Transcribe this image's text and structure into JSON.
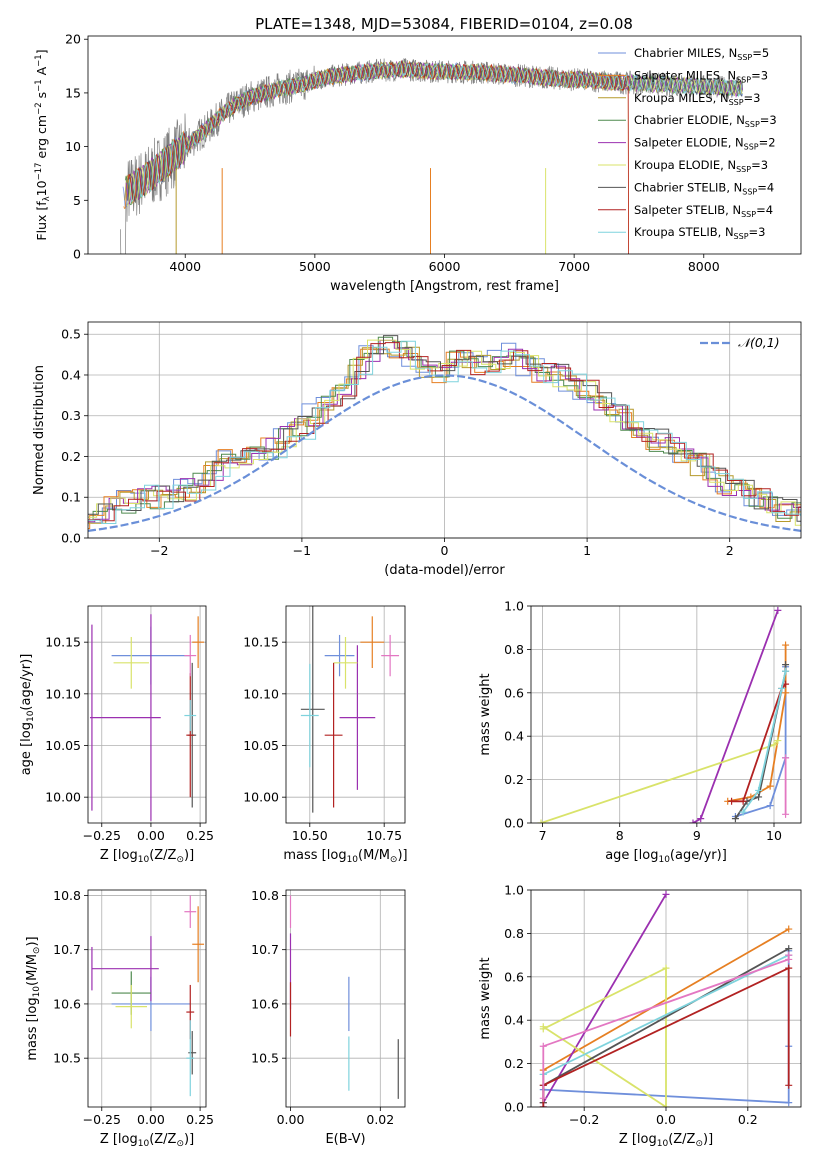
{
  "chart_data": [
    {
      "type": "line",
      "title": "PLATE=1348, MJD=53084, FIBERID=0104, z=0.08",
      "xlabel": "wavelength [Angstrom, rest frame]",
      "ylabel": "Flux [f",
      "ylabel_sub": "λ",
      "ylabel_rest": "10",
      "ylabel_exp1": "−17",
      "ylabel_mid": " erg cm",
      "ylabel_exp2": "−2",
      "ylabel_s": " s",
      "ylabel_exp3": "−1",
      "ylabel_end": " A",
      "ylabel_exp4": "−1",
      "ylabel_close": "]",
      "xlim": [
        3250,
        8750
      ],
      "ylim": [
        0,
        20.3
      ],
      "xticks": [
        "4000",
        "5000",
        "6000",
        "7000",
        "8000"
      ],
      "yticks": [
        "0",
        "5",
        "10",
        "15",
        "20"
      ],
      "continuum": {
        "x": [
          3500,
          3600,
          3700,
          3800,
          3900,
          4000,
          4100,
          4200,
          4300,
          4400,
          4500,
          4700,
          4900,
          5100,
          5300,
          5500,
          5700,
          5900,
          6100,
          6300,
          6500,
          6700,
          6900,
          7100,
          7300,
          7500,
          7700,
          8000,
          8300
        ],
        "y": [
          5.5,
          6.2,
          7.0,
          8.0,
          9.0,
          10.0,
          11.0,
          12.0,
          13.2,
          14.0,
          14.6,
          15.3,
          15.8,
          16.5,
          16.8,
          17.1,
          17.2,
          17.0,
          17.0,
          16.9,
          16.7,
          16.5,
          16.3,
          16.2,
          16.0,
          15.9,
          15.8,
          15.6,
          15.4
        ]
      },
      "series": [
        {
          "name": "Chabrier MILES, ",
          "n_label": "N",
          "n_sub": "SSP",
          "n_value": "=5",
          "color": "#6f8fdb"
        },
        {
          "name": "Salpeter MILES, ",
          "n_label": "N",
          "n_sub": "SSP",
          "n_value": "=3",
          "color": "#e67f22"
        },
        {
          "name": "Kroupa MILES, ",
          "n_label": "N",
          "n_sub": "SSP",
          "n_value": "=3",
          "color": "#b59a2c"
        },
        {
          "name": "Chabrier ELODIE, ",
          "n_label": "N",
          "n_sub": "SSP",
          "n_value": "=3",
          "color": "#4f8a4f"
        },
        {
          "name": "Salpeter ELODIE, ",
          "n_label": "N",
          "n_sub": "SSP",
          "n_value": "=2",
          "color": "#9b30b0"
        },
        {
          "name": "Kroupa ELODIE, ",
          "n_label": "N",
          "n_sub": "SSP",
          "n_value": "=3",
          "color": "#d9e36a"
        },
        {
          "name": "Chabrier STELIB, ",
          "n_label": "N",
          "n_sub": "SSP",
          "n_value": "=4",
          "color": "#555555"
        },
        {
          "name": "Salpeter STELIB, ",
          "n_label": "N",
          "n_sub": "SSP",
          "n_value": "=4",
          "color": "#b22222"
        },
        {
          "name": "Kroupa STELIB, ",
          "n_label": "N",
          "n_sub": "SSP",
          "n_value": "=3",
          "color": "#7fd3dd"
        }
      ],
      "data_color": "#808080"
    },
    {
      "type": "histogram",
      "xlabel": "(data-model)/error",
      "ylabel": "Normed distribution",
      "xlim": [
        -2.5,
        2.5
      ],
      "ylim": [
        0,
        0.53
      ],
      "xticks": [
        "−2",
        "−1",
        "0",
        "1",
        "2"
      ],
      "xtick_values": [
        -2,
        -1,
        0,
        1,
        2
      ],
      "yticks": [
        "0.0",
        "0.1",
        "0.2",
        "0.3",
        "0.4",
        "0.5"
      ],
      "ytick_values": [
        0,
        0.1,
        0.2,
        0.3,
        0.4,
        0.5
      ],
      "legend": "𝒩(0,1)",
      "gaussian_color": "#6a8fd8",
      "bin_width": 0.1,
      "base_bins": [
        0.015,
        0.02,
        0.025,
        0.03,
        0.04,
        0.05,
        0.065,
        0.08,
        0.09,
        0.1,
        0.1,
        0.11,
        0.12,
        0.14,
        0.16,
        0.19,
        0.2,
        0.21,
        0.22,
        0.25,
        0.27,
        0.3,
        0.34,
        0.37,
        0.42,
        0.46,
        0.48,
        0.46,
        0.44,
        0.42,
        0.41,
        0.44,
        0.43,
        0.42,
        0.44,
        0.45,
        0.42,
        0.41,
        0.4,
        0.38,
        0.36,
        0.33,
        0.31,
        0.29,
        0.26,
        0.24,
        0.22,
        0.2,
        0.18,
        0.15,
        0.13,
        0.12,
        0.1,
        0.09,
        0.07,
        0.06,
        0.05,
        0.04,
        0.04,
        0.03,
        0.02,
        0.015
      ]
    },
    {
      "type": "scatter",
      "xlabel": "Z [log",
      "xlabel_sub": "10",
      "xlabel_rest": "(Z/Z",
      "xlabel_sun": "⊙",
      "xlabel_end": ")]",
      "ylabel": "age  [log",
      "ylabel_sub": "10",
      "ylabel_rest": "(age/yr)]",
      "xlim": [
        -0.32,
        0.28
      ],
      "ylim": [
        9.975,
        10.185
      ],
      "xticks": [
        "−0.25",
        "0.00",
        "0.25"
      ],
      "xtick_values": [
        -0.25,
        0,
        0.25
      ],
      "yticks": [
        "10.00",
        "10.05",
        "10.10",
        "10.15"
      ],
      "ytick_values": [
        10.0,
        10.05,
        10.1,
        10.15
      ],
      "points": [
        {
          "x": 0.0,
          "y": 10.137,
          "xerr": 0.2,
          "yerr": 0.028,
          "color": "#6f8fdb"
        },
        {
          "x": 0.24,
          "y": 10.15,
          "xerr": 0.03,
          "yerr": 0.025,
          "color": "#e67f22"
        },
        {
          "x": -0.3,
          "y": 10.077,
          "xerr": 0.0,
          "yerr": 0.09,
          "color": "#9b30b0"
        },
        {
          "x": -0.13,
          "y": 10.077,
          "xerr": 0.18,
          "yerr": 0.0,
          "color": "#9b30b0"
        },
        {
          "x": 0.0,
          "y": 10.077,
          "xerr": 0.0,
          "yerr": 0.1,
          "color": "#9b30b0"
        },
        {
          "x": -0.1,
          "y": 10.13,
          "xerr": 0.09,
          "yerr": 0.025,
          "color": "#d9e36a"
        },
        {
          "x": 0.21,
          "y": 10.06,
          "xerr": 0.02,
          "yerr": 0.07,
          "color": "#555555"
        },
        {
          "x": 0.2,
          "y": 10.06,
          "xerr": 0.02,
          "yerr": 0.06,
          "color": "#b22222"
        },
        {
          "x": 0.2,
          "y": 10.079,
          "xerr": 0.03,
          "yerr": 0.015,
          "color": "#7fd3dd"
        },
        {
          "x": 0.2,
          "y": 10.137,
          "xerr": 0.03,
          "yerr": 0.02,
          "color": "#e377c2"
        }
      ]
    },
    {
      "type": "scatter",
      "xlabel": "mass [log",
      "xlabel_sub": "10",
      "xlabel_rest": "(M/M",
      "xlabel_sun": "⊙",
      "xlabel_end": ")]",
      "xlim": [
        10.42,
        10.82
      ],
      "ylim": [
        9.975,
        10.185
      ],
      "xticks": [
        "10.50",
        "10.75"
      ],
      "xtick_values": [
        10.5,
        10.75
      ],
      "yticks": [
        "10.00",
        "10.05",
        "10.10",
        "10.15"
      ],
      "ytick_values": [
        10.0,
        10.05,
        10.1,
        10.15
      ],
      "points": [
        {
          "x": 10.6,
          "y": 10.137,
          "xerr": 0.05,
          "yerr": 0.02,
          "color": "#6f8fdb"
        },
        {
          "x": 10.71,
          "y": 10.15,
          "xerr": 0.04,
          "yerr": 0.025,
          "color": "#e67f22"
        },
        {
          "x": 10.66,
          "y": 10.077,
          "xerr": 0.06,
          "yerr": 0.07,
          "color": "#9b30b0"
        },
        {
          "x": 10.62,
          "y": 10.13,
          "xerr": 0.04,
          "yerr": 0.025,
          "color": "#d9e36a"
        },
        {
          "x": 10.51,
          "y": 10.085,
          "xerr": 0.04,
          "yerr": 0.1,
          "color": "#555555"
        },
        {
          "x": 10.58,
          "y": 10.06,
          "xerr": 0.03,
          "yerr": 0.07,
          "color": "#b22222"
        },
        {
          "x": 10.5,
          "y": 10.079,
          "xerr": 0.03,
          "yerr": 0.05,
          "color": "#7fd3dd"
        },
        {
          "x": 10.77,
          "y": 10.137,
          "xerr": 0.03,
          "yerr": 0.02,
          "color": "#e377c2"
        }
      ]
    },
    {
      "type": "line",
      "xlabel": "age  [log",
      "xlabel_sub": "10",
      "xlabel_rest": "(age/yr)]",
      "ylabel": "mass weight",
      "xlim": [
        6.85,
        10.35
      ],
      "ylim": [
        0,
        1.0
      ],
      "xticks": [
        "7",
        "8",
        "9",
        "10"
      ],
      "xtick_values": [
        7,
        8,
        9,
        10
      ],
      "yticks": [
        "0.0",
        "0.2",
        "0.4",
        "0.6",
        "0.8",
        "1.0"
      ],
      "ytick_values": [
        0,
        0.2,
        0.4,
        0.6,
        0.8,
        1.0
      ],
      "series": [
        {
          "color": "#6f8fdb",
          "x": [
            9.5,
            9.95,
            10.15,
            10.15
          ],
          "y": [
            0.03,
            0.08,
            0.3,
            0.72
          ]
        },
        {
          "color": "#e67f22",
          "x": [
            9.4,
            9.7,
            9.95,
            10.15,
            10.15
          ],
          "y": [
            0.1,
            0.12,
            0.17,
            0.6,
            0.82
          ]
        },
        {
          "color": "#9b30b0",
          "x": [
            8.95,
            9.05,
            10.05
          ],
          "y": [
            0.0,
            0.02,
            0.98
          ]
        },
        {
          "color": "#d9e36a",
          "x": [
            6.98,
            10.0,
            10.05
          ],
          "y": [
            0.0,
            0.36,
            0.38
          ]
        },
        {
          "color": "#555555",
          "x": [
            9.5,
            9.65,
            9.8,
            10.15,
            10.15
          ],
          "y": [
            0.02,
            0.1,
            0.12,
            0.7,
            0.73
          ]
        },
        {
          "color": "#b22222",
          "x": [
            9.45,
            9.6,
            10.1,
            10.15
          ],
          "y": [
            0.1,
            0.1,
            0.62,
            0.64
          ]
        },
        {
          "color": "#7fd3dd",
          "x": [
            9.6,
            9.8,
            10.1,
            10.15
          ],
          "y": [
            0.05,
            0.15,
            0.62,
            0.7
          ]
        },
        {
          "color": "#e377c2",
          "x": [
            10.15,
            10.15
          ],
          "y": [
            0.04,
            0.3
          ]
        }
      ]
    },
    {
      "type": "scatter",
      "xlabel": "Z [log",
      "xlabel_sub": "10",
      "xlabel_rest": "(Z/Z",
      "xlabel_sun": "⊙",
      "xlabel_end": ")]",
      "ylabel": "mass [log",
      "ylabel_sub": "10",
      "ylabel_rest": "(M/M",
      "ylabel_sun": "⊙",
      "ylabel_end": ")]",
      "xlim": [
        -0.32,
        0.28
      ],
      "ylim": [
        10.41,
        10.81
      ],
      "xticks": [
        "−0.25",
        "0.00",
        "0.25"
      ],
      "xtick_values": [
        -0.25,
        0,
        0.25
      ],
      "yticks": [
        "10.5",
        "10.6",
        "10.7",
        "10.8"
      ],
      "ytick_values": [
        10.5,
        10.6,
        10.7,
        10.8
      ],
      "points": [
        {
          "x": 0.0,
          "y": 10.6,
          "xerr": 0.2,
          "yerr": 0.05,
          "color": "#6f8fdb"
        },
        {
          "x": 0.24,
          "y": 10.71,
          "xerr": 0.03,
          "yerr": 0.07,
          "color": "#e67f22"
        },
        {
          "x": -0.3,
          "y": 10.665,
          "xerr": 0.0,
          "yerr": 0.04,
          "color": "#9b30b0"
        },
        {
          "x": -0.13,
          "y": 10.665,
          "xerr": 0.17,
          "yerr": 0.0,
          "color": "#9b30b0"
        },
        {
          "x": 0.0,
          "y": 10.665,
          "xerr": 0.0,
          "yerr": 0.06,
          "color": "#9b30b0"
        },
        {
          "x": -0.1,
          "y": 10.62,
          "xerr": 0.1,
          "yerr": 0.04,
          "color": "#4f8a4f"
        },
        {
          "x": -0.1,
          "y": 10.595,
          "xerr": 0.08,
          "yerr": 0.04,
          "color": "#d9e36a"
        },
        {
          "x": 0.21,
          "y": 10.51,
          "xerr": 0.02,
          "yerr": 0.04,
          "color": "#555555"
        },
        {
          "x": 0.2,
          "y": 10.585,
          "xerr": 0.02,
          "yerr": 0.05,
          "color": "#b22222"
        },
        {
          "x": 0.2,
          "y": 10.5,
          "xerr": 0.02,
          "yerr": 0.07,
          "color": "#7fd3dd"
        },
        {
          "x": 0.2,
          "y": 10.77,
          "xerr": 0.03,
          "yerr": 0.03,
          "color": "#e377c2"
        }
      ]
    },
    {
      "type": "scatter",
      "xlabel": "E(B-V)",
      "xlim": [
        -0.001,
        0.0255
      ],
      "ylim": [
        10.41,
        10.81
      ],
      "xticks": [
        "0.00",
        "0.02"
      ],
      "xtick_values": [
        0,
        0.02
      ],
      "yticks": [
        "10.5",
        "10.6",
        "10.7",
        "10.8"
      ],
      "ytick_values": [
        10.5,
        10.6,
        10.7,
        10.8
      ],
      "points": [
        {
          "x": 0.0,
          "y": 10.77,
          "xerr": 0,
          "yerr": 0.03,
          "color": "#e377c2"
        },
        {
          "x": 0.0,
          "y": 10.66,
          "xerr": 0,
          "yerr": 0.07,
          "color": "#9b30b0"
        },
        {
          "x": 0.0,
          "y": 10.59,
          "xerr": 0,
          "yerr": 0.05,
          "color": "#b22222"
        },
        {
          "x": 0.013,
          "y": 10.6,
          "xerr": 0,
          "yerr": 0.05,
          "color": "#6f8fdb"
        },
        {
          "x": 0.013,
          "y": 10.49,
          "xerr": 0,
          "yerr": 0.05,
          "color": "#7fd3dd"
        },
        {
          "x": 0.024,
          "y": 10.48,
          "xerr": 0,
          "yerr": 0.055,
          "color": "#555555"
        }
      ]
    },
    {
      "type": "line",
      "xlabel": "Z [log",
      "xlabel_sub": "10",
      "xlabel_rest": "(Z/Z",
      "xlabel_sun": "⊙",
      "xlabel_end": ")]",
      "ylabel": "mass weight",
      "xlim": [
        -0.33,
        0.33
      ],
      "ylim": [
        0,
        1.0
      ],
      "xticks": [
        "−0.2",
        "0.0",
        "0.2"
      ],
      "xtick_values": [
        -0.2,
        0,
        0.2
      ],
      "yticks": [
        "0.0",
        "0.2",
        "0.4",
        "0.6",
        "0.8",
        "1.0"
      ],
      "ytick_values": [
        0,
        0.2,
        0.4,
        0.6,
        0.8,
        1.0
      ],
      "series": [
        {
          "color": "#6f8fdb",
          "x": [
            -0.3,
            -0.3,
            0.3,
            0.3,
            0.3
          ],
          "y": [
            0.15,
            0.08,
            0.02,
            0.28,
            0.72
          ]
        },
        {
          "color": "#e67f22",
          "x": [
            -0.3,
            -0.3,
            0.3
          ],
          "y": [
            0.02,
            0.17,
            0.82
          ]
        },
        {
          "color": "#9b30b0",
          "x": [
            -0.3,
            -0.3,
            0.0
          ],
          "y": [
            0.0,
            0.02,
            0.98
          ]
        },
        {
          "color": "#d9e36a",
          "x": [
            -0.3,
            0.0,
            0.0,
            -0.3
          ],
          "y": [
            0.36,
            0.64,
            0.0,
            0.37
          ]
        },
        {
          "color": "#555555",
          "x": [
            -0.3,
            -0.3,
            0.3
          ],
          "y": [
            0.02,
            0.1,
            0.73
          ]
        },
        {
          "color": "#b22222",
          "x": [
            -0.3,
            -0.3,
            0.3,
            0.3
          ],
          "y": [
            0.0,
            0.1,
            0.64,
            0.1
          ]
        },
        {
          "color": "#7fd3dd",
          "x": [
            -0.3,
            0.3,
            0.3
          ],
          "y": [
            0.15,
            0.7,
            0.7
          ]
        },
        {
          "color": "#e377c2",
          "x": [
            -0.3,
            -0.3,
            0.3,
            0.3
          ],
          "y": [
            0.04,
            0.28,
            0.68,
            0.7
          ]
        }
      ]
    }
  ]
}
